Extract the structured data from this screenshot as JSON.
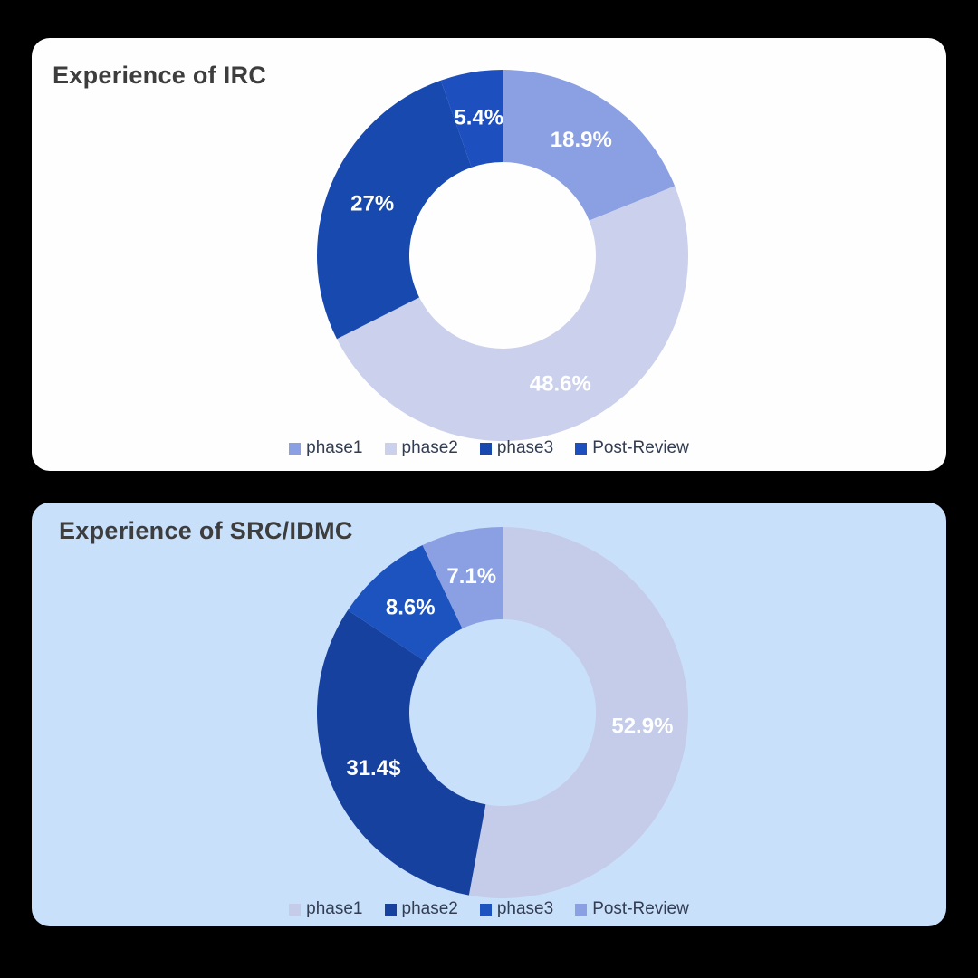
{
  "page": {
    "background": "#000000"
  },
  "cards": [
    {
      "id": "irc",
      "background": "#fefefe"
    },
    {
      "id": "src-idmc",
      "background": "#c9e0fb"
    }
  ],
  "chart_data": [
    {
      "type": "pie",
      "donut": true,
      "title": "Experience of IRC",
      "categories": [
        "phase1",
        "phase2",
        "phase3",
        "Post-Review"
      ],
      "values": [
        18.9,
        48.6,
        27,
        5.4
      ],
      "labels": [
        "18.9%",
        "48.6%",
        "27%",
        "5.4%"
      ],
      "colors": [
        "#8ba0e2",
        "#cbd0ec",
        "#1749af",
        "#1e4fbe"
      ],
      "label_color": "#ffffff",
      "legend_position": "bottom",
      "start_angle_deg": 0,
      "direction": "clockwise"
    },
    {
      "type": "pie",
      "donut": true,
      "title": "Experience of SRC/IDMC",
      "categories": [
        "phase1",
        "phase2",
        "phase3",
        "Post-Review"
      ],
      "values": [
        52.9,
        31.4,
        8.6,
        7.1
      ],
      "labels": [
        "52.9%",
        "31.4$",
        "8.6%",
        "7.1%"
      ],
      "colors": [
        "#c4cce9",
        "#17419f",
        "#1d53be",
        "#8ba0e2"
      ],
      "label_color": "#ffffff",
      "legend_position": "bottom",
      "start_angle_deg": 0,
      "direction": "clockwise"
    }
  ]
}
